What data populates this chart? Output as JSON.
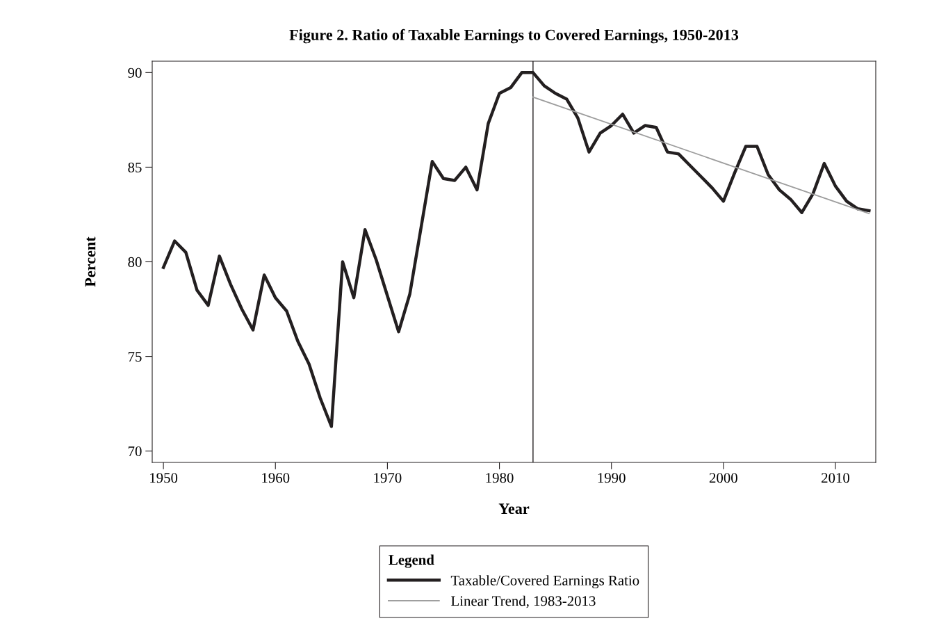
{
  "chart_data": {
    "type": "line",
    "title": "Figure 2. Ratio of Taxable Earnings to Covered Earnings, 1950-2013",
    "xlabel": "Year",
    "ylabel": "Percent",
    "legend_title": "Legend",
    "legend": "bottom",
    "grid": false,
    "marker": "none",
    "line_style": "solid",
    "xlim": [
      1949,
      2013.6
    ],
    "xticks": [
      1950,
      1960,
      1970,
      1980,
      1990,
      2000,
      2010
    ],
    "ylim": [
      69.4,
      90.6
    ],
    "yticks": [
      70,
      75,
      80,
      85,
      90
    ],
    "ref_lines": [
      {
        "axis": "x",
        "value": 1983,
        "color": "#231f20"
      }
    ],
    "series": [
      {
        "name": "Taxable/Covered Earnings Ratio",
        "color": "#231f20",
        "x": [
          1950,
          1951,
          1952,
          1953,
          1954,
          1955,
          1956,
          1957,
          1958,
          1959,
          1960,
          1961,
          1962,
          1963,
          1964,
          1965,
          1966,
          1967,
          1968,
          1969,
          1970,
          1971,
          1972,
          1973,
          1974,
          1975,
          1976,
          1977,
          1978,
          1979,
          1980,
          1981,
          1982,
          1983,
          1984,
          1985,
          1986,
          1987,
          1988,
          1989,
          1990,
          1991,
          1992,
          1993,
          1994,
          1995,
          1996,
          1997,
          1998,
          1999,
          2000,
          2001,
          2002,
          2003,
          2004,
          2005,
          2006,
          2007,
          2008,
          2009,
          2010,
          2011,
          2012,
          2013
        ],
        "values": [
          79.7,
          81.1,
          80.5,
          78.5,
          77.7,
          80.3,
          78.8,
          77.5,
          76.4,
          79.3,
          78.1,
          77.4,
          75.8,
          74.6,
          72.8,
          71.3,
          80.0,
          78.1,
          81.7,
          80.1,
          78.2,
          76.3,
          78.3,
          81.8,
          85.3,
          84.4,
          84.3,
          85.0,
          83.8,
          87.3,
          88.9,
          89.2,
          90.0,
          90.0,
          89.3,
          88.9,
          88.6,
          87.6,
          85.8,
          86.8,
          87.2,
          87.8,
          86.8,
          87.2,
          87.1,
          85.8,
          85.7,
          85.1,
          84.5,
          83.9,
          83.2,
          84.7,
          86.1,
          86.1,
          84.6,
          83.8,
          83.3,
          82.6,
          83.6,
          85.2,
          84.0,
          83.2,
          82.8,
          82.7
        ]
      },
      {
        "name": "Linear Trend, 1983-2013",
        "color": "#9d9d9d",
        "x": [
          1983,
          2013
        ],
        "values": [
          88.7,
          82.55
        ]
      }
    ]
  }
}
